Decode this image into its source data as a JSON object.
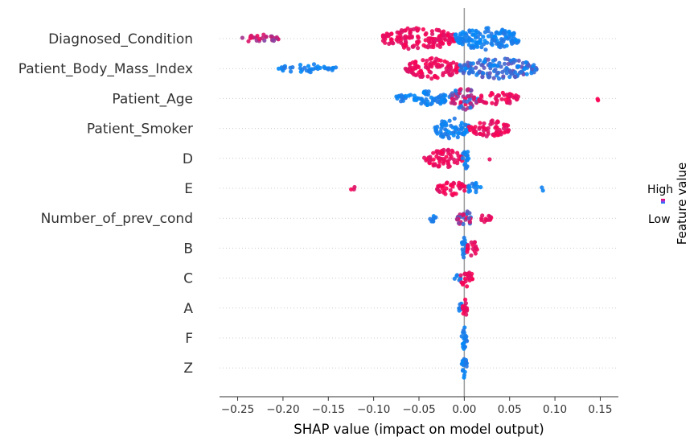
{
  "chart_data": {
    "type": "scatter",
    "subtype": "shap_beeswarm_summary",
    "title": "",
    "xlabel": "SHAP value (impact on model output)",
    "ylabel": "",
    "xlim": [
      -0.27,
      0.17
    ],
    "xticks": [
      -0.25,
      -0.2,
      -0.15,
      -0.1,
      -0.05,
      0.0,
      0.05,
      0.1,
      0.15
    ],
    "xtick_labels": [
      "−0.25",
      "−0.20",
      "−0.15",
      "−0.10",
      "−0.05",
      "0.00",
      "0.05",
      "0.10",
      "0.15"
    ],
    "grid": "dotted horizontal row lines",
    "colorbar": {
      "title": "Feature value",
      "high_label": "High",
      "low_label": "Low",
      "high_color": "#ff0051",
      "low_color": "#008bfb",
      "placement": "right"
    },
    "features": [
      {
        "name": "Diagnosed_Condition",
        "segments": [
          {
            "from": -0.245,
            "to": -0.205,
            "color": "mixed-red",
            "density": 0.35
          },
          {
            "from": -0.09,
            "to": -0.01,
            "color": "red",
            "density": 1.0
          },
          {
            "from": -0.01,
            "to": 0.06,
            "color": "blue",
            "density": 1.0
          }
        ]
      },
      {
        "name": "Patient_Body_Mass_Index",
        "segments": [
          {
            "from": -0.205,
            "to": -0.14,
            "color": "blue",
            "density": 0.3
          },
          {
            "from": -0.065,
            "to": -0.005,
            "color": "red",
            "density": 0.9
          },
          {
            "from": -0.005,
            "to": 0.08,
            "color": "mixed-blue",
            "density": 0.9
          }
        ]
      },
      {
        "name": "Patient_Age",
        "segments": [
          {
            "from": -0.075,
            "to": -0.015,
            "color": "blue",
            "density": 0.6
          },
          {
            "from": -0.015,
            "to": 0.015,
            "color": "mixed",
            "density": 1.0
          },
          {
            "from": 0.015,
            "to": 0.06,
            "color": "red",
            "density": 0.5
          },
          {
            "from": 0.147,
            "to": 0.151,
            "color": "red",
            "density": 0.15
          }
        ]
      },
      {
        "name": "Patient_Smoker",
        "segments": [
          {
            "from": -0.035,
            "to": 0.005,
            "color": "blue",
            "density": 0.9
          },
          {
            "from": 0.005,
            "to": 0.05,
            "color": "red",
            "density": 0.7
          }
        ]
      },
      {
        "name": "D",
        "segments": [
          {
            "from": -0.045,
            "to": -0.002,
            "color": "red",
            "density": 0.8
          },
          {
            "from": -0.002,
            "to": 0.005,
            "color": "blue",
            "density": 1.0
          },
          {
            "from": 0.027,
            "to": 0.028,
            "color": "red",
            "density": 0.05
          }
        ]
      },
      {
        "name": "E",
        "segments": [
          {
            "from": -0.125,
            "to": -0.12,
            "color": "red",
            "density": 0.15
          },
          {
            "from": -0.03,
            "to": 0.002,
            "color": "red",
            "density": 0.6
          },
          {
            "from": 0.002,
            "to": 0.02,
            "color": "blue",
            "density": 0.4
          },
          {
            "from": 0.085,
            "to": 0.088,
            "color": "blue",
            "density": 0.15
          }
        ]
      },
      {
        "name": "Number_of_prev_cond",
        "segments": [
          {
            "from": -0.038,
            "to": -0.028,
            "color": "blue",
            "density": 0.3
          },
          {
            "from": -0.008,
            "to": 0.008,
            "color": "mixed",
            "density": 0.8
          },
          {
            "from": 0.018,
            "to": 0.03,
            "color": "red",
            "density": 0.4
          }
        ]
      },
      {
        "name": "B",
        "segments": [
          {
            "from": -0.003,
            "to": 0.002,
            "color": "blue",
            "density": 1.0
          },
          {
            "from": 0.002,
            "to": 0.015,
            "color": "red",
            "density": 0.6
          }
        ]
      },
      {
        "name": "C",
        "segments": [
          {
            "from": -0.012,
            "to": -0.004,
            "color": "blue",
            "density": 0.3
          },
          {
            "from": -0.005,
            "to": 0.01,
            "color": "red",
            "density": 0.7
          }
        ]
      },
      {
        "name": "A",
        "segments": [
          {
            "from": -0.006,
            "to": -0.002,
            "color": "blue",
            "density": 0.4
          },
          {
            "from": -0.002,
            "to": 0.003,
            "color": "red",
            "density": 0.8
          }
        ]
      },
      {
        "name": "F",
        "segments": [
          {
            "from": -0.003,
            "to": 0.003,
            "color": "blue",
            "density": 1.0
          }
        ]
      },
      {
        "name": "Z",
        "segments": [
          {
            "from": -0.003,
            "to": 0.003,
            "color": "blue",
            "density": 1.0
          }
        ]
      }
    ]
  }
}
